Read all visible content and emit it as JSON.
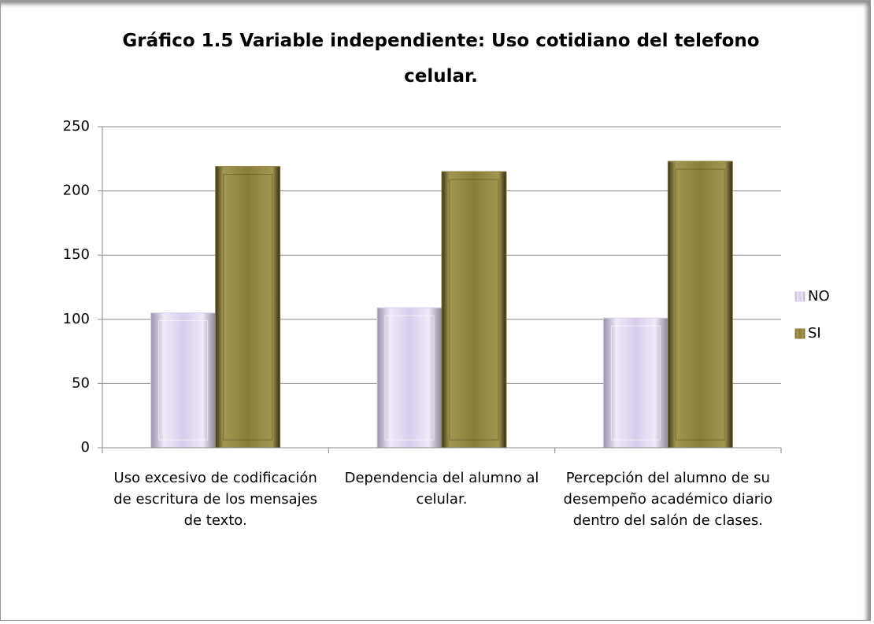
{
  "chart_data": {
    "type": "bar",
    "title": "Gráfico 1.5 Variable independiente: Uso cotidiano del telefono celular.",
    "categories": [
      "Uso excesivo de codificación de escritura de los mensajes de texto.",
      "Dependencia del alumno al celular.",
      "Percepción del alumno de su desempeño académico diario dentro del salón de clases."
    ],
    "series": [
      {
        "name": "NO",
        "color": "#d8d0ea",
        "values": [
          105,
          109,
          101
        ]
      },
      {
        "name": "SI",
        "color": "#8a7d3a",
        "values": [
          219,
          215,
          223
        ]
      }
    ],
    "ylim": [
      0,
      250
    ],
    "yticks": [
      0,
      50,
      100,
      150,
      200,
      250
    ],
    "grid": true,
    "legend": "right"
  }
}
